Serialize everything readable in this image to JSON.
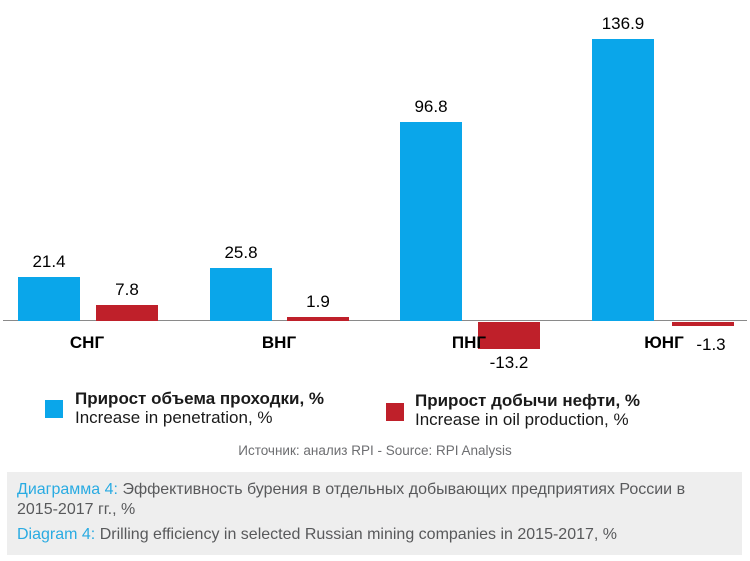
{
  "chart_data": {
    "type": "bar",
    "categories": [
      "СНГ",
      "ВНГ",
      "ПНГ",
      "ЮНГ"
    ],
    "series": [
      {
        "name": "Прирост объема проходки, % / Increase in penetration, %",
        "color": "#0aa6ea",
        "values": [
          21.4,
          25.8,
          96.8,
          136.9
        ],
        "labels": [
          "21.4",
          "25.8",
          "96.8",
          "136.9"
        ]
      },
      {
        "name": "Прирост добычи нефти, % / Increase in oil production, %",
        "color": "#bf202a",
        "values": [
          7.8,
          1.9,
          -13.2,
          -1.3
        ],
        "labels": [
          "7.8",
          "1.9",
          "-13.2",
          "-1.3"
        ]
      }
    ],
    "title": "",
    "xlabel": "",
    "ylabel": "",
    "ylim": [
      -20,
      150
    ],
    "grid": false,
    "value_labels_shown": true,
    "legend_position": "bottom",
    "axis_line_color": "#8a8a8a"
  },
  "legend": {
    "items": [
      {
        "label_ru": "Прирост объема проходки, %",
        "label_en": "Increase in penetration, %",
        "color": "#0aa6ea"
      },
      {
        "label_ru": "Прирост добычи нефти, %",
        "label_en": "Increase in oil production, %",
        "color": "#bf202a"
      }
    ]
  },
  "source_line": "Источник: анализ RPI - Source: RPI Analysis",
  "caption": {
    "ru_label": "Диаграмма 4:",
    "ru_text": "Эффективность бурения в отдельных добывающих предприятиях России в 2015-2017 гг., %",
    "en_label": "Diagram 4:",
    "en_text": "Drilling efficiency in selected Russian mining companies in 2015-2017, %"
  },
  "colors": {
    "bar_blue": "#0aa6ea",
    "bar_red": "#bf202a",
    "caption_accent_blue": "#29abe2",
    "caption_background": "#eeeeee",
    "caption_text": "#58595b",
    "source_text": "#6d6e71",
    "axis_line": "#8a8a8a"
  }
}
